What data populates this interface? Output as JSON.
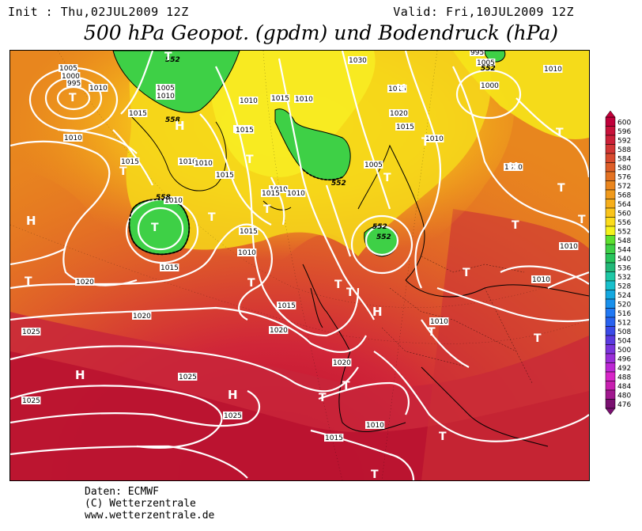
{
  "header": {
    "init": "Init : Thu,02JUL2009 12Z",
    "valid": "Valid: Fri,10JUL2009 12Z",
    "title": "500 hPa Geopot. (gpdm) und Bodendruck (hPa)"
  },
  "footer": {
    "line1": "Daten: ECMWF",
    "line2": "(C) Wetterzentrale",
    "line3": "www.wetterzentrale.de"
  },
  "legend": {
    "values": [
      "600",
      "596",
      "592",
      "588",
      "584",
      "580",
      "576",
      "572",
      "568",
      "564",
      "560",
      "556",
      "552",
      "548",
      "544",
      "540",
      "536",
      "532",
      "528",
      "524",
      "520",
      "516",
      "512",
      "508",
      "504",
      "500",
      "496",
      "492",
      "488",
      "484",
      "480",
      "476"
    ],
    "colors": [
      "#c0003a",
      "#c8123a",
      "#cc2038",
      "#d23634",
      "#d84a2e",
      "#de5e28",
      "#e47222",
      "#ea861e",
      "#f09a1c",
      "#f6ae1a",
      "#fac41a",
      "#fcdc1a",
      "#f4f21a",
      "#5ce02e",
      "#3ed046",
      "#28c45c",
      "#22b878",
      "#1ec8a6",
      "#18c0cc",
      "#14a8e0",
      "#1890ec",
      "#2078f4",
      "#2862f0",
      "#3a4ae8",
      "#5a3ae0",
      "#7a34dc",
      "#9a2ed8",
      "#bc28d4",
      "#d826c8",
      "#c820b0",
      "#a0188e",
      "#7a1070"
    ]
  },
  "map": {
    "pressure_labels": [
      "1005",
      "1000",
      "995",
      "1010",
      "1005",
      "1010",
      "1015",
      "1010",
      "1015",
      "1010",
      "1015",
      "1010",
      "1015",
      "1010",
      "1015",
      "1010",
      "1015",
      "1010",
      "1030",
      "1015",
      "1020",
      "1015",
      "1010",
      "995",
      "1005",
      "1000",
      "1010",
      "1005",
      "1010",
      "1015",
      "1010",
      "1015",
      "1010",
      "1010",
      "1015",
      "1020",
      "1020",
      "1025",
      "1025",
      "1025",
      "1020",
      "1015",
      "1010",
      "1015",
      "1010",
      "1025",
      "1020",
      "1010",
      "1010"
    ],
    "geopot_labels": [
      "552",
      "558",
      "558",
      "552",
      "552",
      "552",
      "552"
    ],
    "high_marks": [
      "H",
      "H",
      "H",
      "H",
      "H",
      "H",
      "H"
    ],
    "low_marks": [
      "T",
      "T",
      "T",
      "T",
      "T",
      "T",
      "T",
      "T",
      "T",
      "T",
      "T",
      "T",
      "T",
      "T",
      "T",
      "T",
      "T",
      "T",
      "T",
      "T",
      "T",
      "T",
      "T",
      "T"
    ]
  }
}
